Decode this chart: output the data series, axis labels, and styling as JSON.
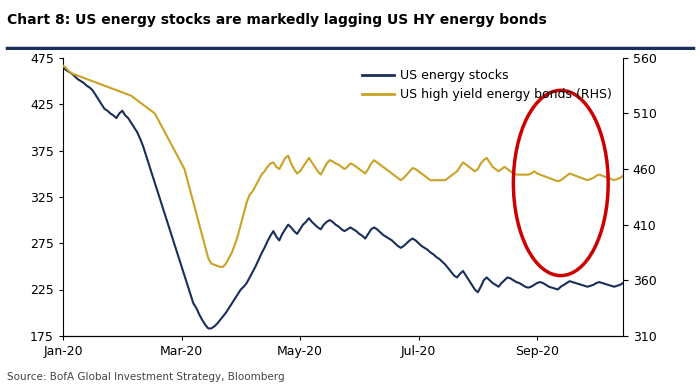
{
  "title": "Chart 8: US energy stocks are markedly lagging US HY energy bonds",
  "source": "Source: BofA Global Investment Strategy, Bloomberg",
  "legend1": "US energy stocks",
  "legend2": "US high yield energy bonds (RHS)",
  "lhs_ylim": [
    175,
    475
  ],
  "rhs_ylim": [
    310,
    560
  ],
  "lhs_yticks": [
    175,
    225,
    275,
    325,
    375,
    425,
    475
  ],
  "rhs_yticks": [
    310,
    360,
    410,
    460,
    510,
    560
  ],
  "xtick_labels": [
    "Jan-20",
    "Mar-20",
    "May-20",
    "Jul-20",
    "Sep-20"
  ],
  "color_stocks": "#1a2e5a",
  "color_bonds": "#c9a227",
  "color_circle": "#cc0000",
  "title_color": "#000000",
  "background_color": "#ffffff",
  "header_line_color": "#1a2e5a",
  "stocks_data": [
    465,
    462,
    460,
    458,
    455,
    452,
    450,
    448,
    445,
    443,
    440,
    435,
    430,
    425,
    420,
    418,
    415,
    413,
    410,
    415,
    418,
    413,
    410,
    405,
    400,
    395,
    388,
    380,
    370,
    360,
    350,
    340,
    330,
    320,
    310,
    300,
    290,
    280,
    270,
    260,
    250,
    240,
    230,
    220,
    210,
    205,
    198,
    192,
    187,
    183,
    183,
    185,
    188,
    192,
    196,
    200,
    205,
    210,
    215,
    220,
    225,
    228,
    232,
    238,
    244,
    250,
    257,
    264,
    270,
    277,
    283,
    288,
    282,
    278,
    285,
    290,
    295,
    292,
    288,
    285,
    290,
    295,
    298,
    302,
    298,
    295,
    292,
    290,
    295,
    298,
    300,
    298,
    295,
    293,
    290,
    288,
    290,
    292,
    290,
    288,
    285,
    283,
    280,
    285,
    290,
    292,
    290,
    287,
    284,
    282,
    280,
    278,
    275,
    272,
    270,
    272,
    275,
    278,
    280,
    278,
    275,
    272,
    270,
    268,
    265,
    263,
    260,
    258,
    255,
    252,
    248,
    244,
    240,
    238,
    242,
    245,
    240,
    235,
    230,
    225,
    222,
    228,
    235,
    238,
    235,
    232,
    230,
    228,
    232,
    235,
    238,
    237,
    235,
    233,
    232,
    230,
    228,
    227,
    228,
    230,
    232,
    233,
    232,
    230,
    228,
    227,
    226,
    225,
    228,
    230,
    232,
    234,
    233,
    232,
    231,
    230,
    229,
    228,
    229,
    230,
    232,
    233,
    232,
    231,
    230,
    229,
    228,
    229,
    230,
    232
  ],
  "bonds_data": [
    553,
    551,
    548,
    546,
    545,
    544,
    543,
    542,
    541,
    540,
    539,
    538,
    537,
    536,
    535,
    534,
    533,
    532,
    531,
    530,
    529,
    528,
    527,
    526,
    524,
    522,
    520,
    518,
    516,
    514,
    512,
    510,
    505,
    500,
    495,
    490,
    485,
    480,
    475,
    470,
    465,
    460,
    450,
    440,
    430,
    420,
    410,
    400,
    390,
    380,
    375,
    374,
    373,
    372,
    372,
    375,
    380,
    385,
    392,
    400,
    410,
    420,
    430,
    437,
    440,
    445,
    450,
    455,
    458,
    462,
    465,
    466,
    462,
    460,
    465,
    470,
    472,
    465,
    460,
    456,
    458,
    462,
    466,
    470,
    466,
    462,
    458,
    455,
    460,
    465,
    468,
    467,
    465,
    464,
    462,
    460,
    462,
    465,
    464,
    462,
    460,
    458,
    456,
    460,
    465,
    468,
    466,
    464,
    462,
    460,
    458,
    456,
    454,
    452,
    450,
    452,
    455,
    458,
    461,
    460,
    458,
    456,
    454,
    452,
    450,
    450,
    450,
    450,
    450,
    450,
    452,
    454,
    456,
    458,
    462,
    466,
    464,
    462,
    460,
    458,
    460,
    465,
    468,
    470,
    466,
    462,
    460,
    458,
    460,
    462,
    460,
    458,
    456,
    455,
    455,
    455,
    455,
    455,
    456,
    458,
    456,
    455,
    454,
    453,
    452,
    451,
    450,
    449,
    450,
    452,
    454,
    456,
    455,
    454,
    453,
    452,
    451,
    450,
    451,
    452,
    454,
    455,
    454,
    453,
    452,
    451,
    450,
    451,
    452,
    454
  ]
}
